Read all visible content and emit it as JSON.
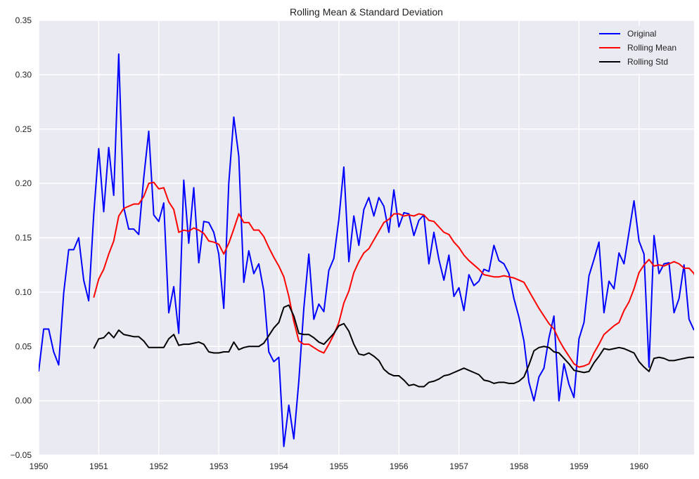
{
  "chart_data": {
    "type": "line",
    "title": "Rolling Mean & Standard Deviation",
    "xlabel": "",
    "ylabel": "",
    "xlim": [
      1950.0,
      1960.917
    ],
    "ylim": [
      -0.05,
      0.35
    ],
    "x_ticks": [
      {
        "value": 1950,
        "label": "1950"
      },
      {
        "value": 1951,
        "label": "1951"
      },
      {
        "value": 1952,
        "label": "1952"
      },
      {
        "value": 1953,
        "label": "1953"
      },
      {
        "value": 1954,
        "label": "1954"
      },
      {
        "value": 1955,
        "label": "1955"
      },
      {
        "value": 1956,
        "label": "1956"
      },
      {
        "value": 1957,
        "label": "1957"
      },
      {
        "value": 1958,
        "label": "1958"
      },
      {
        "value": 1959,
        "label": "1959"
      },
      {
        "value": 1960,
        "label": "1960"
      }
    ],
    "y_ticks": [
      {
        "value": -0.05,
        "label": "−0.05"
      },
      {
        "value": 0.0,
        "label": "0.00"
      },
      {
        "value": 0.05,
        "label": "0.05"
      },
      {
        "value": 0.1,
        "label": "0.10"
      },
      {
        "value": 0.15,
        "label": "0.15"
      },
      {
        "value": 0.2,
        "label": "0.20"
      },
      {
        "value": 0.25,
        "label": "0.25"
      },
      {
        "value": 0.3,
        "label": "0.30"
      },
      {
        "value": 0.35,
        "label": "0.35"
      }
    ],
    "grid": true,
    "legend_position": "top-right",
    "series": [
      {
        "name": "Original",
        "color": "#0000ff",
        "x_start": 1950.0,
        "x_step": 0.08333,
        "values": [
          0.027,
          0.066,
          0.066,
          0.045,
          0.033,
          0.099,
          0.139,
          0.139,
          0.15,
          0.111,
          0.092,
          0.171,
          0.232,
          0.174,
          0.233,
          0.189,
          0.319,
          0.178,
          0.158,
          0.158,
          0.153,
          0.205,
          0.248,
          0.171,
          0.165,
          0.182,
          0.081,
          0.105,
          0.062,
          0.203,
          0.145,
          0.196,
          0.127,
          0.165,
          0.164,
          0.155,
          0.135,
          0.085,
          0.2,
          0.261,
          0.225,
          0.109,
          0.138,
          0.117,
          0.126,
          0.101,
          0.045,
          0.036,
          0.04,
          -0.042,
          -0.004,
          -0.035,
          0.018,
          0.085,
          0.135,
          0.075,
          0.089,
          0.082,
          0.12,
          0.131,
          0.167,
          0.215,
          0.128,
          0.17,
          0.143,
          0.176,
          0.187,
          0.17,
          0.187,
          0.179,
          0.155,
          0.194,
          0.16,
          0.173,
          0.172,
          0.152,
          0.166,
          0.171,
          0.126,
          0.155,
          0.13,
          0.111,
          0.134,
          0.096,
          0.104,
          0.083,
          0.116,
          0.106,
          0.11,
          0.121,
          0.119,
          0.143,
          0.129,
          0.126,
          0.117,
          0.094,
          0.077,
          0.055,
          0.017,
          0.0,
          0.022,
          0.03,
          0.058,
          0.078,
          0.0,
          0.034,
          0.015,
          0.003,
          0.057,
          0.072,
          0.115,
          0.13,
          0.146,
          0.081,
          0.11,
          0.103,
          0.136,
          0.126,
          0.155,
          0.184,
          0.147,
          0.135,
          0.031,
          0.152,
          0.117,
          0.126,
          0.127,
          0.081,
          0.094,
          0.125,
          0.075,
          0.065
        ]
      },
      {
        "name": "Rolling Mean",
        "color": "#ff0000",
        "x_start": 1950.917,
        "x_step": 0.08333,
        "values": [
          0.095,
          0.112,
          0.121,
          0.135,
          0.147,
          0.17,
          0.177,
          0.179,
          0.181,
          0.181,
          0.188,
          0.2,
          0.201,
          0.195,
          0.196,
          0.183,
          0.176,
          0.155,
          0.157,
          0.156,
          0.159,
          0.157,
          0.154,
          0.147,
          0.146,
          0.144,
          0.135,
          0.145,
          0.158,
          0.172,
          0.164,
          0.164,
          0.157,
          0.157,
          0.151,
          0.141,
          0.132,
          0.124,
          0.114,
          0.096,
          0.073,
          0.055,
          0.052,
          0.052,
          0.049,
          0.046,
          0.044,
          0.052,
          0.061,
          0.072,
          0.09,
          0.101,
          0.118,
          0.128,
          0.136,
          0.14,
          0.148,
          0.156,
          0.164,
          0.167,
          0.172,
          0.172,
          0.17,
          0.171,
          0.17,
          0.172,
          0.171,
          0.166,
          0.165,
          0.16,
          0.155,
          0.153,
          0.146,
          0.141,
          0.134,
          0.129,
          0.125,
          0.121,
          0.116,
          0.115,
          0.114,
          0.114,
          0.115,
          0.114,
          0.113,
          0.111,
          0.109,
          0.101,
          0.093,
          0.085,
          0.078,
          0.071,
          0.066,
          0.056,
          0.048,
          0.041,
          0.034,
          0.031,
          0.032,
          0.034,
          0.044,
          0.052,
          0.061,
          0.065,
          0.069,
          0.072,
          0.083,
          0.091,
          0.103,
          0.118,
          0.125,
          0.13,
          0.124,
          0.125,
          0.124,
          0.126,
          0.128,
          0.126,
          0.122,
          0.122,
          0.117,
          0.106
        ]
      },
      {
        "name": "Rolling Std",
        "color": "#000000",
        "x_start": 1950.917,
        "x_step": 0.08333,
        "values": [
          0.048,
          0.057,
          0.058,
          0.063,
          0.058,
          0.065,
          0.061,
          0.06,
          0.059,
          0.059,
          0.055,
          0.049,
          0.049,
          0.049,
          0.049,
          0.057,
          0.061,
          0.051,
          0.052,
          0.052,
          0.053,
          0.054,
          0.052,
          0.045,
          0.044,
          0.044,
          0.045,
          0.045,
          0.054,
          0.047,
          0.049,
          0.05,
          0.05,
          0.05,
          0.053,
          0.06,
          0.067,
          0.072,
          0.086,
          0.088,
          0.078,
          0.062,
          0.061,
          0.061,
          0.058,
          0.054,
          0.052,
          0.057,
          0.062,
          0.069,
          0.071,
          0.064,
          0.052,
          0.043,
          0.042,
          0.044,
          0.041,
          0.037,
          0.029,
          0.025,
          0.023,
          0.023,
          0.019,
          0.014,
          0.015,
          0.013,
          0.013,
          0.017,
          0.018,
          0.02,
          0.023,
          0.024,
          0.026,
          0.028,
          0.03,
          0.028,
          0.026,
          0.024,
          0.019,
          0.018,
          0.016,
          0.017,
          0.017,
          0.016,
          0.016,
          0.018,
          0.022,
          0.033,
          0.046,
          0.049,
          0.05,
          0.049,
          0.045,
          0.044,
          0.039,
          0.034,
          0.028,
          0.027,
          0.026,
          0.027,
          0.035,
          0.041,
          0.048,
          0.047,
          0.048,
          0.049,
          0.048,
          0.046,
          0.044,
          0.036,
          0.031,
          0.027,
          0.039,
          0.04,
          0.039,
          0.037,
          0.037,
          0.038,
          0.039,
          0.04,
          0.04,
          0.037
        ]
      }
    ]
  },
  "style": {
    "plot_bg": "#eaeaf2",
    "grid_color": "#ffffff",
    "legend_bg": "#eaeaf2"
  }
}
